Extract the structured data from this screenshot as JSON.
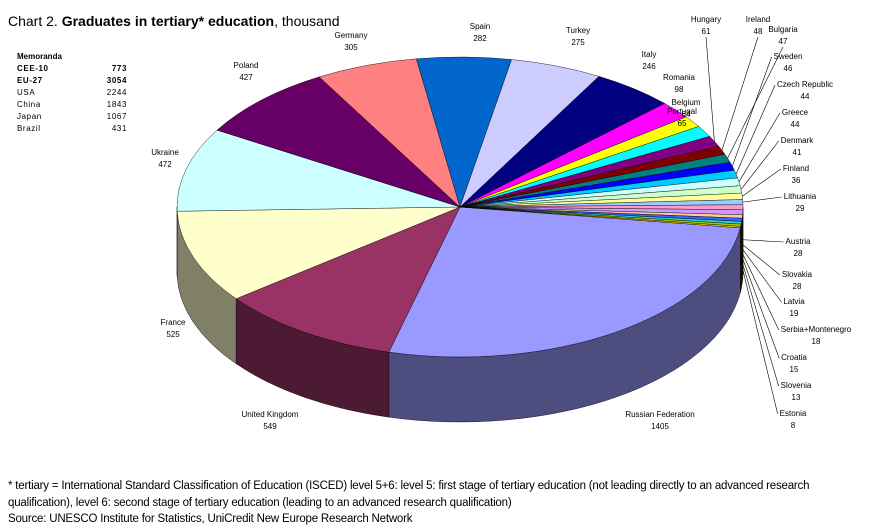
{
  "chart_data": {
    "type": "pie3d",
    "title_parts": [
      "Chart 2.",
      "Graduates in tertiary* education",
      ", thousand"
    ],
    "categories": [
      "Russian Federation",
      "United Kingdom",
      "France",
      "Ukraine",
      "Poland",
      "Germany",
      "Spain",
      "Turkey",
      "Italy",
      "Romania",
      "Portugal",
      "Belgium",
      "Hungary",
      "Ireland",
      "Bulgaria",
      "Sweden",
      "Czech Republic",
      "Greece",
      "Denmark",
      "Finland",
      "Lithuania",
      "Austria",
      "Slovakia",
      "Latvia",
      "Serbia+Montenegro",
      "Croatia",
      "Slovenia",
      "Estonia"
    ],
    "values": [
      1405,
      549,
      525,
      472,
      427,
      305,
      282,
      275,
      246,
      98,
      65,
      64,
      61,
      48,
      47,
      46,
      44,
      44,
      41,
      36,
      29,
      28,
      28,
      19,
      18,
      15,
      13,
      8
    ],
    "colors": [
      "#9999ff",
      "#993366",
      "#ffffcc",
      "#ccffff",
      "#660066",
      "#ff8080",
      "#0066cc",
      "#ccccff",
      "#000080",
      "#ff00ff",
      "#ffff00",
      "#00ffff",
      "#800080",
      "#800000",
      "#008080",
      "#0000ff",
      "#00ccff",
      "#ccffff",
      "#ccffcc",
      "#ffff99",
      "#99ccff",
      "#ff99cc",
      "#cc99ff",
      "#ffcc99",
      "#3366ff",
      "#33cccc",
      "#99cc00",
      "#ffcc00"
    ],
    "memoranda": {
      "title": "Memoranda",
      "rows": [
        [
          "CEE-10",
          773
        ],
        [
          "EU-27",
          3054
        ],
        [
          "USA",
          2244
        ],
        [
          "China",
          1843
        ],
        [
          "Japan",
          1067
        ],
        [
          "Brazil",
          431
        ]
      ]
    },
    "footnote": "* tertiary = International Standard Classification of Education (ISCED) level 5+6: level 5: first stage of tertiary education (not leading directly to an advanced research qualification), level 6: second stage of tertiary education (leading to an advanced research qualification)",
    "source": "Source: UNESCO Institute for Statistics, UniCredit New Europe Research Network"
  }
}
